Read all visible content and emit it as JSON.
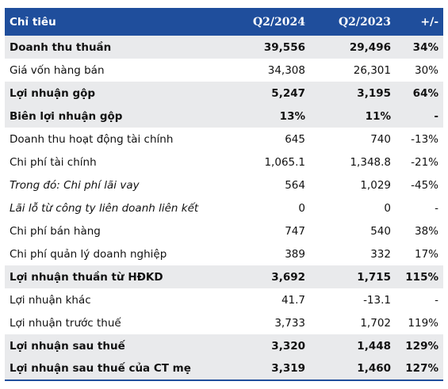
{
  "header": {
    "label": "Chỉ tiêu",
    "col1": "Q2/2024",
    "col2": "Q2/2023",
    "col3": "+/-"
  },
  "rows": [
    {
      "label": "Doanh thu thuần",
      "q2_2024": "39,556",
      "q2_2023": "29,496",
      "change": "34%"
    },
    {
      "label": "Giá vốn hàng bán",
      "q2_2024": "34,308",
      "q2_2023": "26,301",
      "change": "30%"
    },
    {
      "label": "Lợi nhuận gộp",
      "q2_2024": "5,247",
      "q2_2023": "3,195",
      "change": "64%"
    },
    {
      "label": "Biên lợi nhuận gộp",
      "q2_2024": "13%",
      "q2_2023": "11%",
      "change": "-"
    },
    {
      "label": "Doanh thu hoạt động tài chính",
      "q2_2024": "645",
      "q2_2023": "740",
      "change": "-13%"
    },
    {
      "label": "Chi phí tài chính",
      "q2_2024": "1,065.1",
      "q2_2023": "1,348.8",
      "change": "-21%"
    },
    {
      "label": "Trong đó: Chi phí lãi vay",
      "q2_2024": "564",
      "q2_2023": "1,029",
      "change": "-45%"
    },
    {
      "label": "Lãi lỗ từ công ty liên doanh liên kết",
      "q2_2024": "0",
      "q2_2023": "0",
      "change": "-"
    },
    {
      "label": "Chi phí bán hàng",
      "q2_2024": "747",
      "q2_2023": "540",
      "change": "38%"
    },
    {
      "label": "Chi phí quản lý doanh nghiệp",
      "q2_2024": "389",
      "q2_2023": "332",
      "change": "17%"
    },
    {
      "label": "Lợi nhuận thuần từ HĐKD",
      "q2_2024": "3,692",
      "q2_2023": "1,715",
      "change": "115%"
    },
    {
      "label": "Lợi nhuận khác",
      "q2_2024": "41.7",
      "q2_2023": "-13.1",
      "change": "-"
    },
    {
      "label": "Lợi nhuận trước thuế",
      "q2_2024": "3,733",
      "q2_2023": "1,702",
      "change": "119%"
    },
    {
      "label": "Lợi nhuận sau thuế",
      "q2_2024": "3,320",
      "q2_2023": "1,448",
      "change": "129%"
    },
    {
      "label": "Lợi nhuận sau thuế của CT mẹ",
      "q2_2024": "3,319",
      "q2_2023": "1,460",
      "change": "127%"
    }
  ],
  "colors": {
    "header_bg": "#1f4e9c",
    "header_text": "#ffffff",
    "shaded_row": "#e9eaec"
  }
}
